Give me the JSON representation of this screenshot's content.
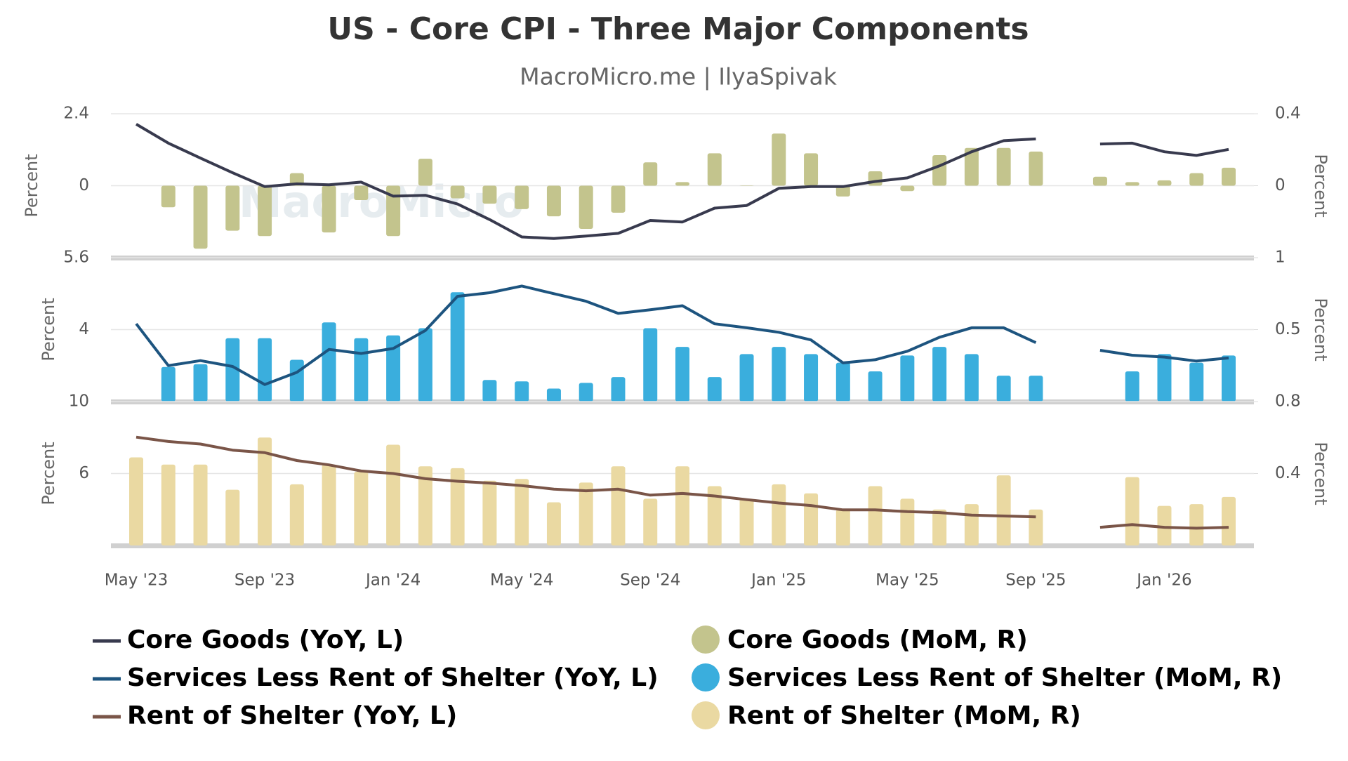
{
  "chart_data": {
    "type": "combo",
    "title": "US - Core CPI - Three Major Components",
    "subtitle": "MacroMicro.me | IlyaSpivak",
    "watermark": "MacroMicro",
    "categories": [
      "May '23",
      null,
      null,
      null,
      "Sep '23",
      null,
      null,
      null,
      "Jan '24",
      null,
      null,
      null,
      "May '24",
      null,
      null,
      null,
      "Sep '24",
      null,
      null,
      null,
      "Jan '25",
      null,
      null,
      null,
      "May '25",
      null,
      null,
      null,
      "Sep '25",
      null,
      null,
      null,
      "Jan '26",
      null,
      null
    ],
    "panels": [
      {
        "ylabel": "Percent",
        "y2label": "Percent",
        "ylim": [
          -2.4,
          2.4
        ],
        "yticks": [
          0,
          2.4
        ],
        "y2lim": [
          -0.4,
          0.4
        ],
        "y2ticks": [
          0,
          0.4
        ],
        "series": [
          {
            "name": "Core Goods (YoY, L)",
            "type": "line",
            "color": "#383a4e",
            "values": [
              2.05,
              1.42,
              0.92,
              0.43,
              -0.03,
              0.06,
              0.03,
              0.12,
              -0.35,
              -0.32,
              -0.61,
              -1.13,
              -1.71,
              -1.76,
              -1.68,
              -1.59,
              -1.16,
              -1.21,
              -0.75,
              -0.66,
              -0.09,
              -0.03,
              -0.03,
              0.14,
              0.26,
              0.66,
              1.13,
              1.5,
              1.56,
              null,
              1.39,
              1.42,
              1.13,
              1.01,
              1.21
            ]
          },
          {
            "name": "Core Goods (MoM, R)",
            "type": "bar",
            "axis": "y2",
            "color": "#c3c48d",
            "values": [
              null,
              -0.12,
              -0.35,
              -0.25,
              -0.28,
              0.07,
              -0.26,
              -0.08,
              -0.28,
              0.15,
              -0.07,
              -0.1,
              -0.13,
              -0.17,
              -0.24,
              -0.15,
              0.13,
              0.02,
              0.18,
              0,
              0.29,
              0.18,
              -0.06,
              0.08,
              -0.03,
              0.17,
              0.21,
              0.21,
              0.19,
              null,
              0.05,
              0.02,
              0.03,
              0.07,
              0.1
            ]
          }
        ]
      },
      {
        "ylabel": "Percent",
        "y2label": "Percent",
        "ylim": [
          2.4,
          5.6
        ],
        "yticks": [
          4,
          5.6
        ],
        "y2lim": [
          0,
          1
        ],
        "y2ticks": [
          0.5,
          1
        ],
        "series": [
          {
            "name": "Services Less Rent of Shelter (YoY, L)",
            "type": "line",
            "color": "#1d547f",
            "values": [
              4.13,
              3.2,
              3.31,
              3.18,
              2.78,
              3.05,
              3.56,
              3.47,
              3.58,
              3.98,
              4.74,
              4.82,
              4.97,
              4.8,
              4.63,
              4.36,
              4.44,
              4.53,
              4.13,
              4.04,
              3.94,
              3.77,
              3.26,
              3.33,
              3.52,
              3.83,
              4.04,
              4.04,
              3.71,
              null,
              3.54,
              3.43,
              3.39,
              3.3,
              3.37
            ]
          },
          {
            "name": "Services Less Rent of Shelter (MoM, R)",
            "type": "bar",
            "axis": "y2",
            "color": "#3aaedd",
            "values": [
              null,
              0.24,
              0.26,
              0.44,
              0.44,
              0.29,
              0.55,
              0.44,
              0.46,
              0.51,
              0.76,
              0.15,
              0.14,
              0.09,
              0.13,
              0.17,
              0.51,
              0.38,
              0.17,
              0.33,
              0.38,
              0.33,
              0.27,
              0.21,
              0.32,
              0.38,
              0.33,
              0.18,
              0.18,
              null,
              null,
              0.21,
              0.33,
              0.27,
              0.32
            ]
          }
        ]
      },
      {
        "ylabel": "Percent",
        "y2label": "Percent",
        "ylim": [
          2,
          10
        ],
        "yticks": [
          6,
          10
        ],
        "y2lim": [
          0,
          0.8
        ],
        "y2ticks": [
          0.4,
          0.8
        ],
        "series": [
          {
            "name": "Rent of Shelter (YoY, L)",
            "type": "line",
            "color": "#7a5548",
            "values": [
              8.02,
              7.78,
              7.64,
              7.3,
              7.16,
              6.72,
              6.48,
              6.14,
              6.0,
              5.71,
              5.57,
              5.47,
              5.33,
              5.13,
              5.04,
              5.13,
              4.8,
              4.89,
              4.75,
              4.55,
              4.36,
              4.22,
              3.98,
              3.98,
              3.88,
              3.83,
              3.69,
              3.64,
              3.59,
              null,
              3.01,
              3.16,
              3.01,
              2.96,
              3.01
            ]
          },
          {
            "name": "Rent of Shelter (MoM, R)",
            "type": "bar",
            "axis": "y2",
            "color": "#ead9a2",
            "values": [
              0.49,
              0.45,
              0.45,
              0.31,
              0.6,
              0.34,
              0.45,
              0.41,
              0.56,
              0.44,
              0.43,
              0.36,
              0.37,
              0.24,
              0.35,
              0.44,
              0.26,
              0.44,
              0.33,
              0.26,
              0.34,
              0.29,
              0.2,
              0.33,
              0.26,
              0.2,
              0.23,
              0.39,
              0.2,
              null,
              null,
              0.38,
              0.22,
              0.23,
              0.27
            ]
          }
        ]
      }
    ]
  }
}
